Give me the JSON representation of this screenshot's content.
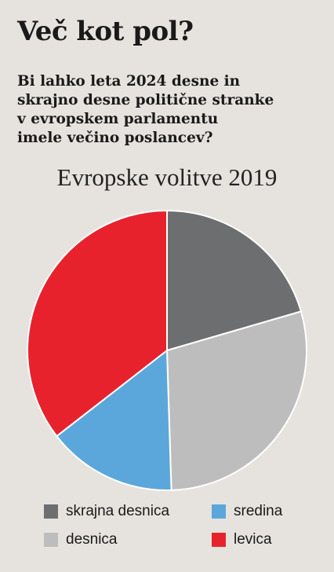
{
  "headline": "Več kot pol?",
  "subhead_lines": [
    "Bi lahko leta 2024 desne in",
    "skrajno desne politične stranke",
    "v evropskem parlamentu",
    "imele večino poslancev?"
  ],
  "chart_data": {
    "type": "pie",
    "title": "Evropske volitve 2019",
    "slices": [
      {
        "label": "skrajna desnica",
        "value": 20.5,
        "color": "#6d6e70"
      },
      {
        "label": "desnica",
        "value": 29.0,
        "color": "#bdbdbd"
      },
      {
        "label": "sredina",
        "value": 15.0,
        "color": "#5ba7db"
      },
      {
        "label": "levica",
        "value": 35.5,
        "color": "#e8222d"
      }
    ],
    "legend_placement": "bottom"
  }
}
